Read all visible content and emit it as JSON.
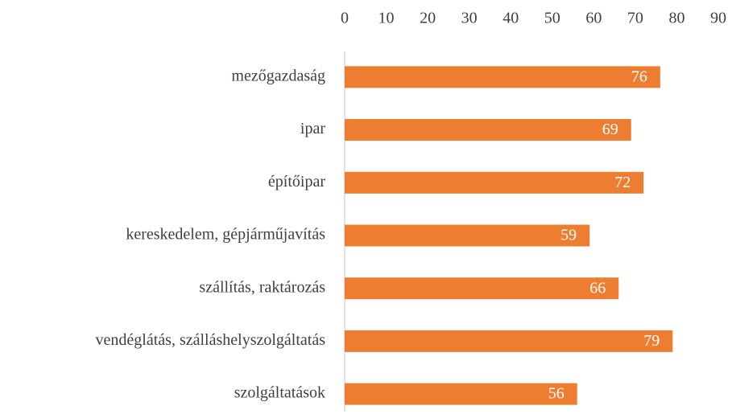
{
  "chart_data": {
    "type": "bar",
    "orientation": "horizontal",
    "categories": [
      "mezőgazdaság",
      "ipar",
      "építőipar",
      "kereskedelem, gépjárműjavítás",
      "szállítás, raktározás",
      "vendéglátás, szálláshelyszolgáltatás",
      "szolgáltatások"
    ],
    "values": [
      76,
      69,
      72,
      59,
      66,
      79,
      56
    ],
    "color": "#ed7d31",
    "xlim": [
      0,
      90
    ],
    "xticks": [
      0,
      10,
      20,
      30,
      40,
      50,
      60,
      70,
      80,
      90
    ],
    "axis_position": "top",
    "grid": false,
    "data_labels": true
  }
}
